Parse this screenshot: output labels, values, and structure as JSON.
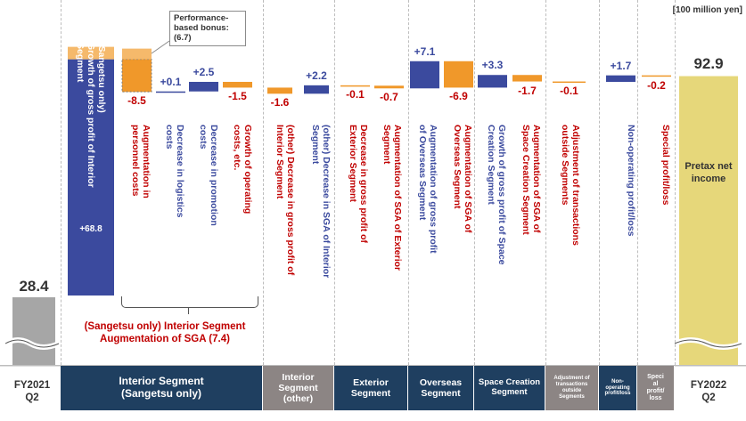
{
  "unit_label": "[100 million yen]",
  "chart_data": {
    "type": "waterfall",
    "start": {
      "label_line1": "FY2021",
      "label_line2": "Q2",
      "value": 28.4,
      "display": "28.4"
    },
    "end": {
      "label_line1": "FY2022",
      "label_line2": "Q2",
      "value": 92.9,
      "display": "92.9",
      "inner_label": "Pretax net income"
    },
    "steps": [
      {
        "value": 68.8,
        "display": "+68.8",
        "description": "(Sangetsu only)\nGrowth of gross profit of Interior\nSegment",
        "segment": "interior",
        "color": "#3b4a9e"
      },
      {
        "value": -8.5,
        "display": "-8.5",
        "description": "Augmentation in\npersonnel costs",
        "segment": "interior",
        "color": "#f0982a"
      },
      {
        "value": 0.1,
        "display": "+0.1",
        "description": "Decrease in logistics\ncosts",
        "segment": "interior",
        "color": "#3b4a9e"
      },
      {
        "value": 2.5,
        "display": "+2.5",
        "description": "Decrease in promotion\ncosts",
        "segment": "interior",
        "color": "#3b4a9e"
      },
      {
        "value": -1.5,
        "display": "-1.5",
        "description": "Growth of operating\ncosts, etc.",
        "segment": "interior",
        "color": "#f0982a"
      },
      {
        "value": -1.6,
        "display": "-1.6",
        "description": "(other) Decrease in gross profit of\nInterior Segment",
        "segment": "interior_other",
        "color": "#f0982a"
      },
      {
        "value": 2.2,
        "display": "+2.2",
        "description": "(other) Decrease in SGA of Interior\nSegment",
        "segment": "interior_other",
        "color": "#3b4a9e"
      },
      {
        "value": -0.1,
        "display": "-0.1",
        "description": "Decrease in gross profit of\nExterior Segment",
        "segment": "exterior",
        "color": "#f0982a"
      },
      {
        "value": -0.7,
        "display": "-0.7",
        "description": "Augmentation of SGA of Exterior\nSegment",
        "segment": "exterior",
        "color": "#f0982a"
      },
      {
        "value": 7.1,
        "display": "+7.1",
        "description": "Augmentation of gross profit\nof Overseas Segment",
        "segment": "overseas",
        "color": "#3b4a9e"
      },
      {
        "value": -6.9,
        "display": "-6.9",
        "description": "Augmentation of SGA of\nOverseas Segment",
        "segment": "overseas",
        "color": "#f0982a"
      },
      {
        "value": 3.3,
        "display": "+3.3",
        "description": "Growth of gross profit of Space\nCreation Segment",
        "segment": "space",
        "color": "#3b4a9e"
      },
      {
        "value": -1.7,
        "display": "-1.7",
        "description": "Augmentation of SGA of\nSpace Creation Segment",
        "segment": "space",
        "color": "#f0982a"
      },
      {
        "value": -0.1,
        "display": "-0.1",
        "description": "Adjustment of transactions\noutside Segments",
        "segment": "adjustment",
        "color": "#f0982a"
      },
      {
        "value": 1.7,
        "display": "+1.7",
        "description": "Non-operating profit/loss",
        "segment": "nonop",
        "color": "#3b4a9e"
      },
      {
        "value": -0.2,
        "display": "-0.2",
        "description": "Special profit/loss",
        "segment": "special",
        "color": "#f0982a"
      }
    ],
    "callout": {
      "text": "Performance-\nbased bonus:\n(6.7)",
      "value": 6.7
    },
    "bracket_note": "(Sangetsu only) Interior Segment\nAugmentation of SGA (7.4)",
    "segments": [
      {
        "key": "interior",
        "label": "Interior Segment\n(Sangetsu only)"
      },
      {
        "key": "interior_other",
        "label": "Interior\nSegment\n(other)"
      },
      {
        "key": "exterior",
        "label": "Exterior\nSegment"
      },
      {
        "key": "overseas",
        "label": "Overseas\nSegment"
      },
      {
        "key": "space",
        "label": "Space Creation\nSegment"
      },
      {
        "key": "adjustment",
        "label": "Adjustment of\ntransactions\noutside\nSegments"
      },
      {
        "key": "nonop",
        "label": "Non-\noperating\nprofit/loss"
      },
      {
        "key": "special",
        "label": "Speci\nal\nprofit/\nloss"
      }
    ],
    "colors": {
      "increase": "#3b4a9e",
      "decrease": "#f0982a",
      "start": "#a6a6a6",
      "end": "#e6d77a",
      "footer_dark": "#1f3f60",
      "footer_gray": "#8c8584"
    }
  }
}
